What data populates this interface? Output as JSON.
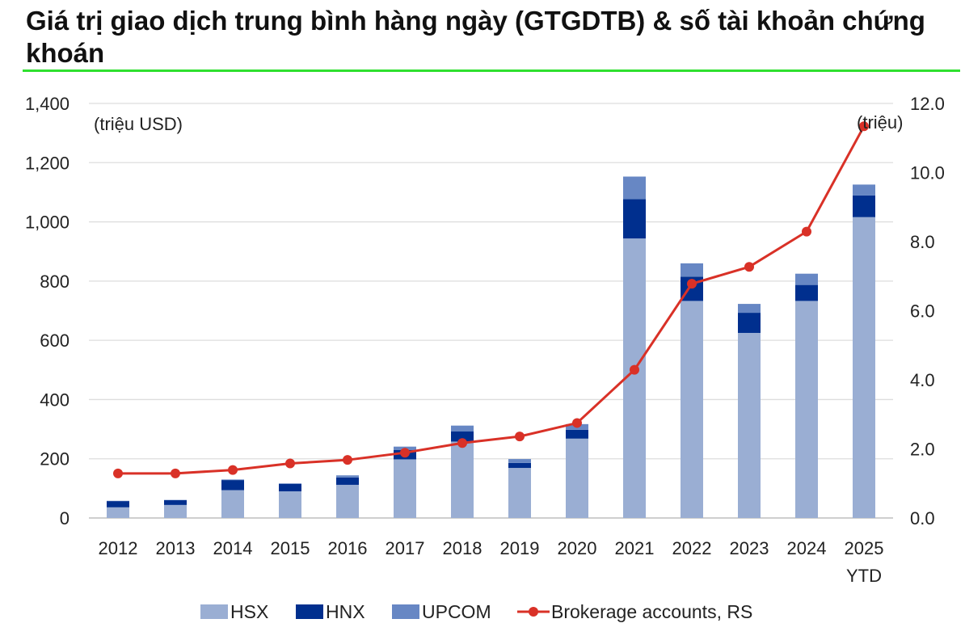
{
  "title": "Giá trị giao dịch trung bình hàng ngày (GTGDTB) & số tài khoản chứng khoán",
  "chart_data": {
    "type": "bar",
    "stacked": true,
    "categories": [
      "2012",
      "2013",
      "2014",
      "2015",
      "2016",
      "2017",
      "2018",
      "2019",
      "2020",
      "2021",
      "2022",
      "2023",
      "2024",
      "2025 YTD"
    ],
    "left_unit": "(triệu USD)",
    "right_unit": "(triệu)",
    "ylim": [
      0,
      1400
    ],
    "y_ticks": [
      "0",
      "200",
      "400",
      "600",
      "800",
      "1,000",
      "1,200",
      "1,400"
    ],
    "y2lim": [
      0,
      12
    ],
    "y2_ticks": [
      "0.0",
      "2.0",
      "4.0",
      "6.0",
      "8.0",
      "10.0",
      "12.0"
    ],
    "grid": true,
    "legend_position": "bottom",
    "series": [
      {
        "name": "HSX",
        "type": "bar",
        "color": "#9aaed3",
        "values": [
          36,
          44,
          94,
          90,
          112,
          198,
          258,
          169,
          268,
          944,
          733,
          625,
          733,
          1016
        ]
      },
      {
        "name": "HNX",
        "type": "bar",
        "color": "#002f8e",
        "values": [
          21,
          16,
          34,
          25,
          25,
          32,
          34,
          17,
          30,
          133,
          82,
          68,
          54,
          73
        ]
      },
      {
        "name": "UPCOM",
        "type": "bar",
        "color": "#6787c4",
        "values": [
          1,
          1,
          2,
          2,
          7,
          11,
          20,
          13,
          19,
          76,
          45,
          30,
          38,
          37
        ]
      },
      {
        "name": "Brokerage accounts, RS",
        "type": "line",
        "axis": "right",
        "color": "#d93127",
        "values": [
          1.29,
          1.29,
          1.39,
          1.58,
          1.68,
          1.89,
          2.17,
          2.36,
          2.75,
          4.29,
          6.78,
          7.27,
          8.29,
          11.34
        ]
      }
    ]
  }
}
